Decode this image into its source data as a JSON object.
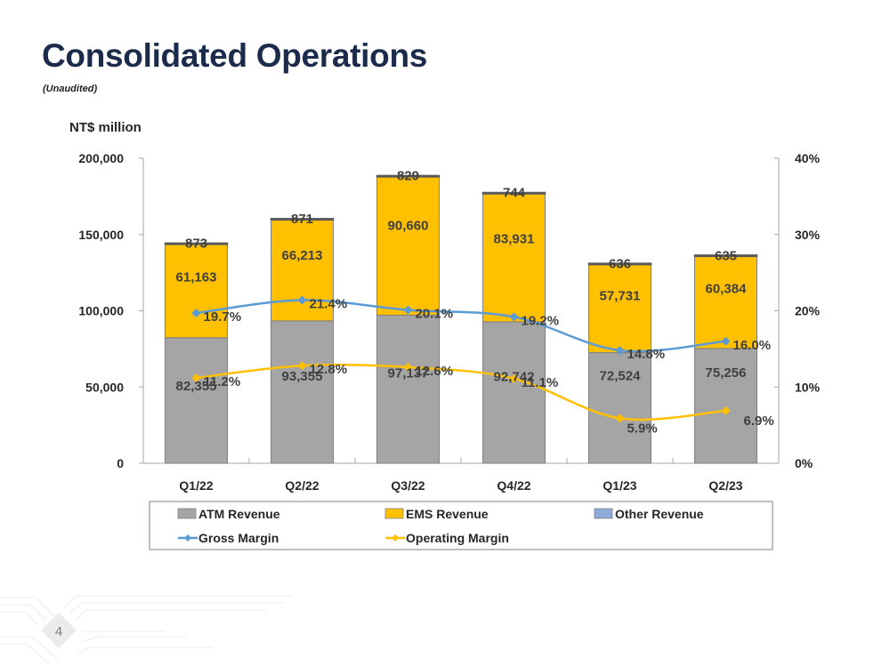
{
  "slide": {
    "title": "Consolidated Operations",
    "subtitle": "(Unaudited)",
    "page_number": "4"
  },
  "colors": {
    "title": "#1b2b4b",
    "atm": "#a5a5a5",
    "ems": "#ffc000",
    "other": "#8eaadb",
    "gross_margin": "#5b9bd5",
    "operating_margin": "#ffc000",
    "text": "#404040"
  },
  "chart_data": {
    "type": "bar",
    "stacked": true,
    "title": "",
    "ylabel": "NT$ million",
    "y2label": "",
    "categories": [
      "Q1/22",
      "Q2/22",
      "Q3/22",
      "Q4/22",
      "Q1/23",
      "Q2/23"
    ],
    "ylim": [
      0,
      200000
    ],
    "yticks": [
      0,
      50000,
      100000,
      150000,
      200000
    ],
    "ytick_labels": [
      "0",
      "50,000",
      "100,000",
      "150,000",
      "200,000"
    ],
    "y2lim": [
      0,
      40
    ],
    "y2ticks": [
      0,
      10,
      20,
      30,
      40
    ],
    "y2tick_labels": [
      "0%",
      "10%",
      "20%",
      "30%",
      "40%"
    ],
    "grid": false,
    "legend_position": "bottom",
    "series": [
      {
        "name": "ATM Revenue",
        "type": "bar",
        "values": [
          82355,
          93355,
          97137,
          92742,
          72524,
          75256
        ],
        "labels": [
          "82,355",
          "93,355",
          "97,137",
          "92,742",
          "72,524",
          "75,256"
        ]
      },
      {
        "name": "EMS Revenue",
        "type": "bar",
        "values": [
          61163,
          66213,
          90660,
          83931,
          57731,
          60384
        ],
        "labels": [
          "61,163",
          "66,213",
          "90,660",
          "83,931",
          "57,731",
          "60,384"
        ]
      },
      {
        "name": "Other Revenue",
        "type": "bar",
        "values": [
          873,
          871,
          829,
          744,
          636,
          635
        ],
        "labels": [
          "873",
          "871",
          "829",
          "744",
          "636",
          "635"
        ]
      },
      {
        "name": "Gross Margin",
        "type": "line",
        "axis": "secondary",
        "values": [
          19.7,
          21.4,
          20.1,
          19.2,
          14.8,
          16.0
        ],
        "labels": [
          "19.7%",
          "21.4%",
          "20.1%",
          "19.2%",
          "14.8%",
          "16.0%"
        ]
      },
      {
        "name": "Operating Margin",
        "type": "line",
        "axis": "secondary",
        "values": [
          11.2,
          12.8,
          12.6,
          11.1,
          5.9,
          6.9
        ],
        "labels": [
          "11.2%",
          "12.8%",
          "12.6%",
          "11.1%",
          "5.9%",
          "6.9%"
        ]
      }
    ]
  }
}
